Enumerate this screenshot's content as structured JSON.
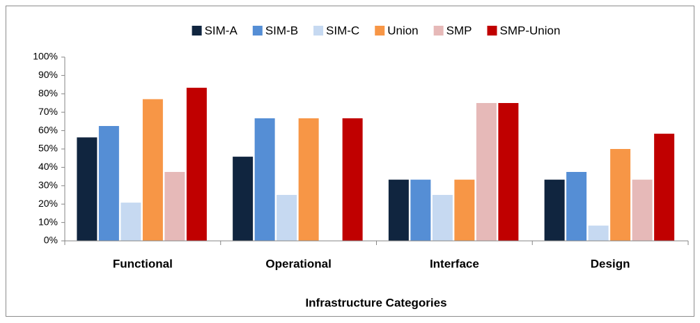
{
  "chart_data": {
    "type": "bar",
    "x_label": "Infrastructure Categories",
    "categories": [
      "Functional",
      "Operational",
      "Interface",
      "Design"
    ],
    "series": [
      {
        "name": "SIM-A",
        "color": "#10253f",
        "values": [
          56.3,
          45.8,
          33.3,
          33.3
        ]
      },
      {
        "name": "SIM-B",
        "color": "#558ed5",
        "values": [
          62.5,
          66.7,
          33.3,
          37.5
        ]
      },
      {
        "name": "SIM-C",
        "color": "#c6d9f1",
        "values": [
          20.8,
          25,
          25,
          8.3
        ]
      },
      {
        "name": "Union",
        "color": "#f79646",
        "values": [
          77.1,
          66.7,
          33.3,
          50
        ]
      },
      {
        "name": "SMP",
        "color": "#e6b9b8",
        "values": [
          37.5,
          0,
          75,
          33.3
        ]
      },
      {
        "name": "SMP-Union",
        "color": "#c00000",
        "values": [
          83.3,
          66.7,
          75,
          58.3
        ]
      }
    ],
    "ylim": [
      0,
      100
    ],
    "yticks": [
      {
        "value": 0,
        "label": "0%"
      },
      {
        "value": 10,
        "label": "10%"
      },
      {
        "value": 20,
        "label": "20%"
      },
      {
        "value": 30,
        "label": "30%"
      },
      {
        "value": 40,
        "label": "40%"
      },
      {
        "value": 50,
        "label": "50%"
      },
      {
        "value": 60,
        "label": "60%"
      },
      {
        "value": 70,
        "label": "70%"
      },
      {
        "value": 80,
        "label": "80%"
      },
      {
        "value": 90,
        "label": "90%"
      },
      {
        "value": 100,
        "label": "100%"
      }
    ],
    "legend": "top",
    "grid": false
  }
}
